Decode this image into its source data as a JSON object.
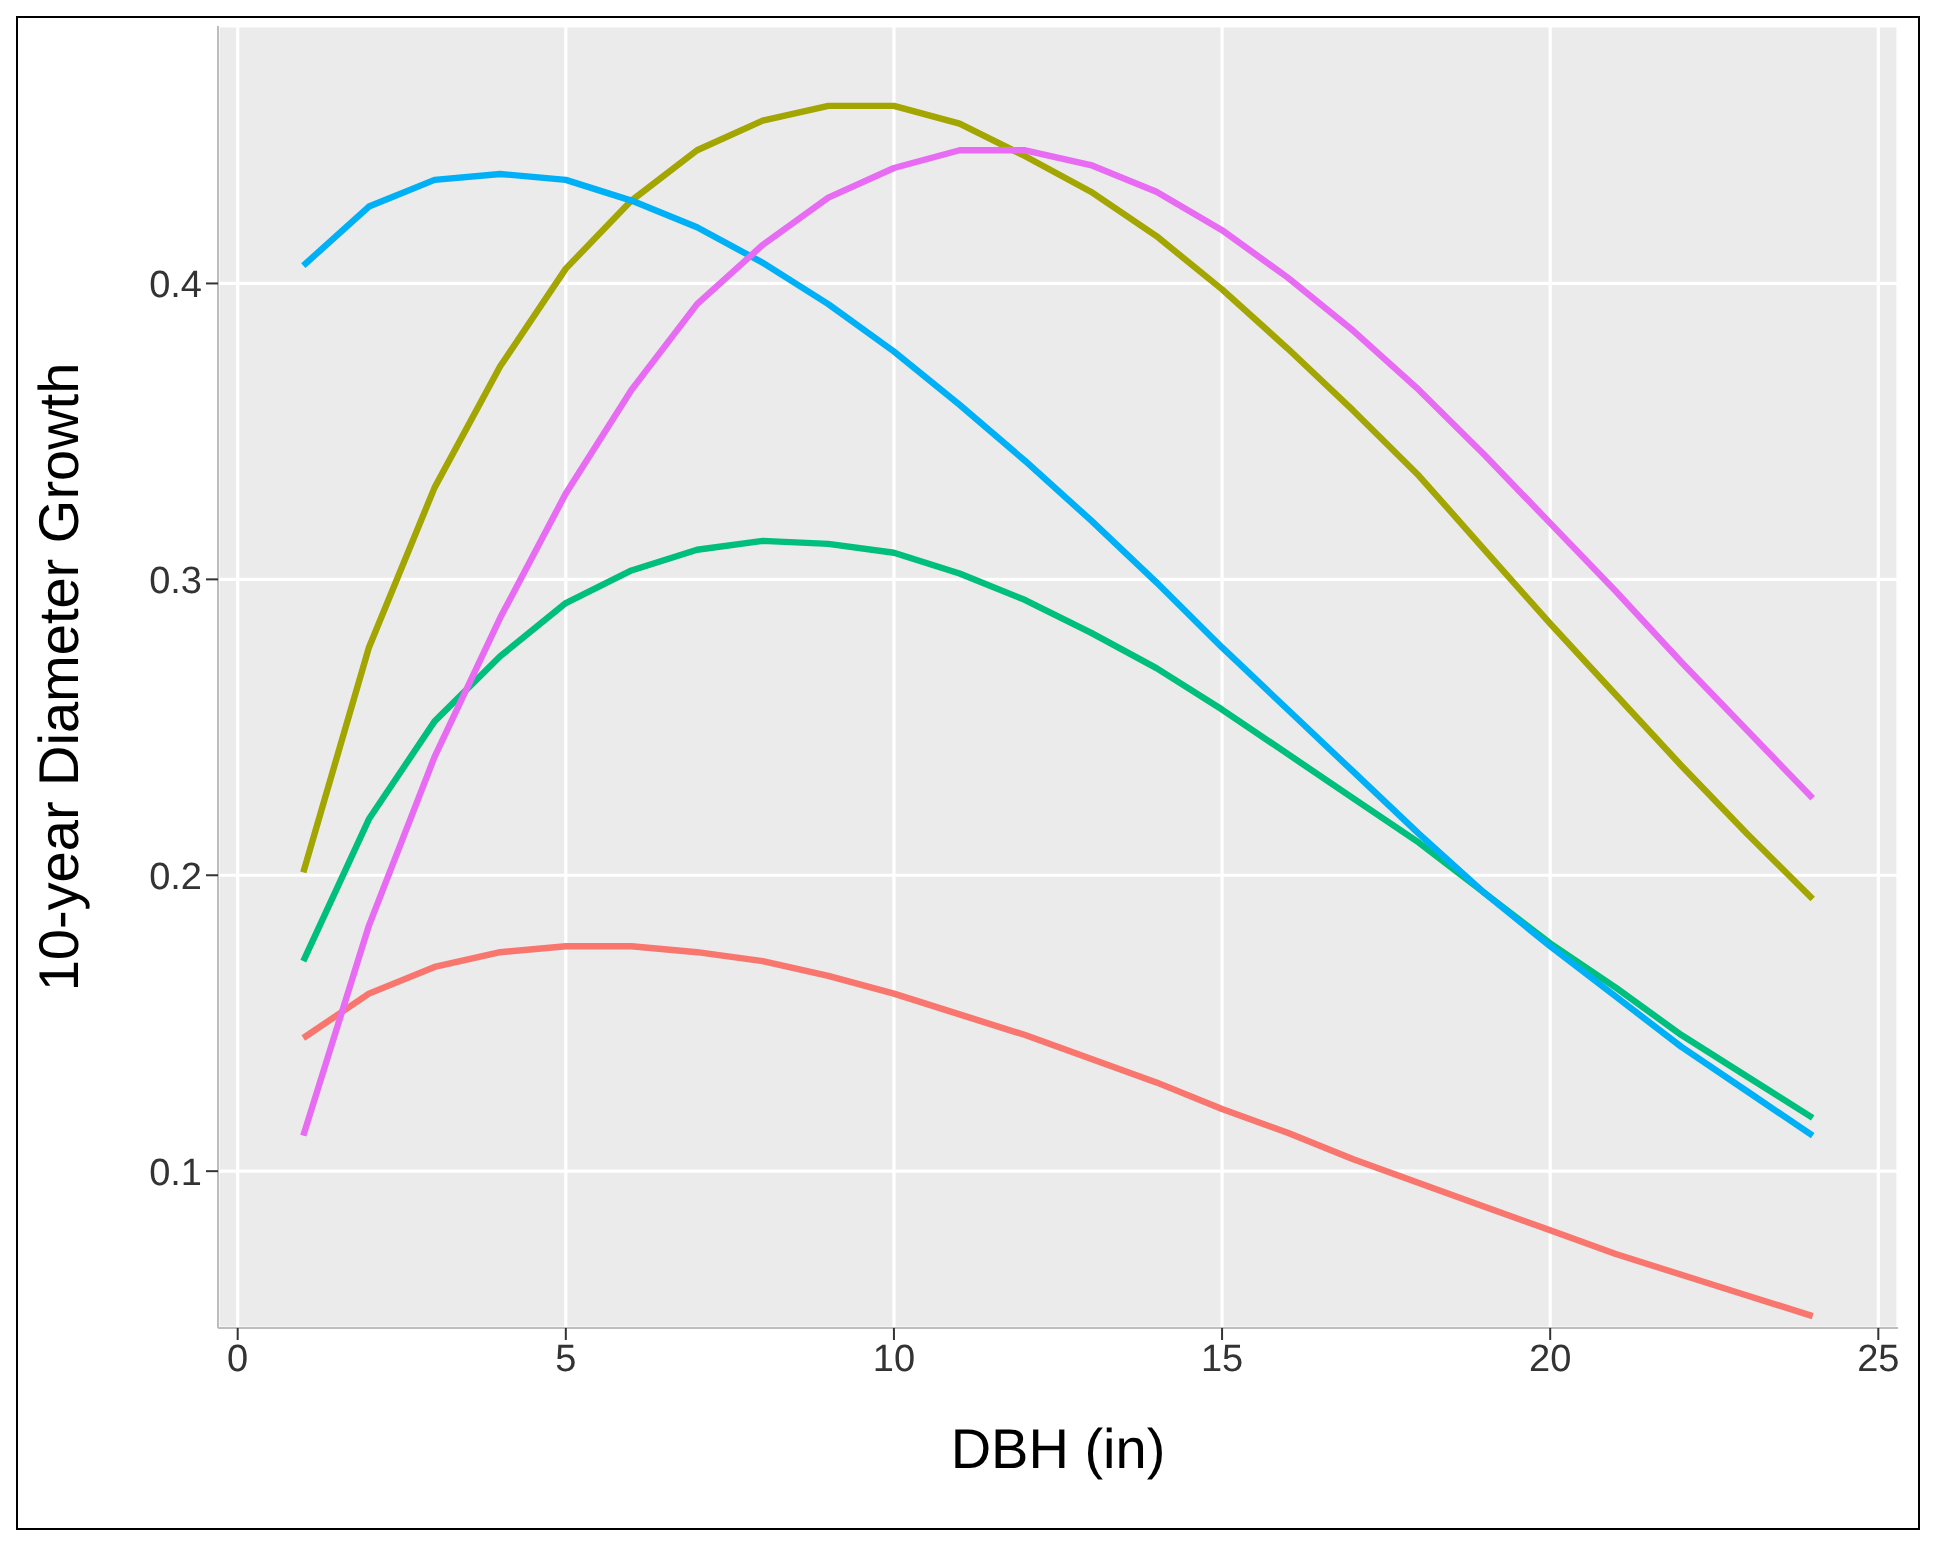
{
  "chart_data": {
    "type": "line",
    "xlabel": "DBH (in)",
    "ylabel": "10-year Diameter Growth",
    "x": [
      1,
      2,
      3,
      4,
      5,
      6,
      7,
      8,
      9,
      10,
      11,
      12,
      13,
      14,
      15,
      16,
      17,
      18,
      19,
      20,
      21,
      22,
      23,
      24
    ],
    "series": [
      {
        "color": "#f8766d",
        "values": [
          0.145,
          0.16,
          0.169,
          0.174,
          0.176,
          0.176,
          0.174,
          0.171,
          0.166,
          0.16,
          0.153,
          0.146,
          0.138,
          0.13,
          0.121,
          0.113,
          0.104,
          0.096,
          0.088,
          0.08,
          0.072,
          0.065,
          0.058,
          0.051
        ]
      },
      {
        "color": "#a3a500",
        "values": [
          0.201,
          0.277,
          0.331,
          0.372,
          0.405,
          0.428,
          0.445,
          0.455,
          0.46,
          0.46,
          0.454,
          0.443,
          0.431,
          0.416,
          0.398,
          0.378,
          0.357,
          0.335,
          0.31,
          0.285,
          0.261,
          0.237,
          0.214,
          0.192
        ]
      },
      {
        "color": "#00bf7d",
        "values": [
          0.171,
          0.219,
          0.252,
          0.274,
          0.292,
          0.303,
          0.31,
          0.313,
          0.312,
          0.309,
          0.302,
          0.293,
          0.282,
          0.27,
          0.256,
          0.241,
          0.226,
          0.211,
          0.194,
          0.177,
          0.162,
          0.146,
          0.132,
          0.118
        ]
      },
      {
        "color": "#00b0f6",
        "values": [
          0.406,
          0.426,
          0.435,
          0.437,
          0.435,
          0.428,
          0.419,
          0.407,
          0.393,
          0.377,
          0.359,
          0.34,
          0.32,
          0.299,
          0.277,
          0.256,
          0.235,
          0.214,
          0.194,
          0.176,
          0.159,
          0.142,
          0.127,
          0.112
        ]
      },
      {
        "color": "#e76bf3",
        "values": [
          0.112,
          0.183,
          0.24,
          0.287,
          0.329,
          0.364,
          0.393,
          0.413,
          0.429,
          0.439,
          0.445,
          0.445,
          0.44,
          0.431,
          0.418,
          0.402,
          0.384,
          0.364,
          0.342,
          0.319,
          0.296,
          0.272,
          0.249,
          0.226
        ]
      }
    ],
    "xlim": [
      -0.3,
      25.3
    ],
    "xticks": [
      0,
      5,
      10,
      15,
      20,
      25
    ],
    "ylim": [
      0.047,
      0.487
    ],
    "yticks": [
      0.1,
      0.2,
      0.3,
      0.4
    ],
    "grid": true,
    "legend": false,
    "marker": "none",
    "line_style": "solid"
  }
}
